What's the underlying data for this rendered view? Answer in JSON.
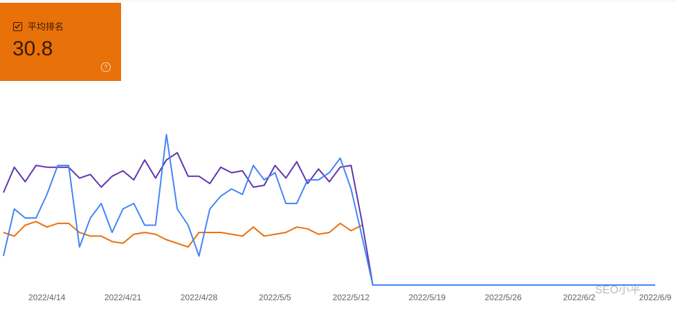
{
  "card": {
    "label": "平均排名",
    "value": "30.8"
  },
  "watermark": "SEO小平",
  "chart_data": {
    "type": "line",
    "x": [
      "2022/4/10",
      "2022/4/11",
      "2022/4/12",
      "2022/4/13",
      "2022/4/14",
      "2022/4/15",
      "2022/4/16",
      "2022/4/17",
      "2022/4/18",
      "2022/4/19",
      "2022/4/20",
      "2022/4/21",
      "2022/4/22",
      "2022/4/23",
      "2022/4/24",
      "2022/4/25",
      "2022/4/26",
      "2022/4/27",
      "2022/4/28",
      "2022/4/29",
      "2022/4/30",
      "2022/5/1",
      "2022/5/2",
      "2022/5/3",
      "2022/5/4",
      "2022/5/5",
      "2022/5/6",
      "2022/5/7",
      "2022/5/8",
      "2022/5/9",
      "2022/5/10",
      "2022/5/11",
      "2022/5/12",
      "2022/5/13",
      "2022/5/14",
      "2022/5/15",
      "2022/5/16",
      "2022/5/17",
      "2022/5/18",
      "2022/5/19",
      "2022/5/20",
      "2022/5/21",
      "2022/5/22",
      "2022/5/23",
      "2022/5/24",
      "2022/5/25",
      "2022/5/26",
      "2022/5/27",
      "2022/5/28",
      "2022/5/29",
      "2022/5/30",
      "2022/5/31",
      "2022/6/1",
      "2022/6/2",
      "2022/6/3",
      "2022/6/4",
      "2022/6/5",
      "2022/6/6",
      "2022/6/7",
      "2022/6/8",
      "2022/6/9"
    ],
    "xticks": [
      "2022/4/14",
      "2022/4/21",
      "2022/4/28",
      "2022/5/5",
      "2022/5/12",
      "2022/5/19",
      "2022/5/26",
      "2022/6/2",
      "2022/6/9"
    ],
    "ylim": [
      0,
      100
    ],
    "series": [
      {
        "color": "#e8710a",
        "values": [
          29,
          27,
          33,
          35,
          32,
          34,
          34,
          29,
          27,
          27,
          24,
          23,
          28,
          29,
          28,
          25,
          23,
          21,
          29,
          29,
          29,
          28,
          27,
          32,
          27,
          28,
          29,
          32,
          31,
          28,
          29,
          34,
          30,
          33,
          null,
          null,
          null,
          null,
          null,
          null,
          null,
          null,
          null,
          null,
          null,
          null,
          null,
          null,
          null,
          null,
          null,
          null,
          null,
          null,
          null,
          null,
          null,
          null,
          null,
          null,
          null
        ]
      },
      {
        "color": "#5e35b1",
        "values": [
          51,
          65,
          57,
          66,
          65,
          65,
          65,
          59,
          61,
          54,
          60,
          63,
          58,
          69,
          59,
          69,
          73,
          60,
          60,
          56,
          65,
          62,
          63,
          54,
          55,
          66,
          59,
          68,
          56,
          64,
          57,
          65,
          66,
          35,
          0,
          0,
          0,
          0,
          0,
          0,
          0,
          0,
          0,
          0,
          0,
          0,
          0,
          0,
          0,
          0,
          0,
          0,
          0,
          0,
          0,
          0,
          0,
          0,
          0,
          0,
          0
        ]
      },
      {
        "color": "#4285f4",
        "values": [
          16,
          42,
          37,
          37,
          50,
          66,
          66,
          21,
          37,
          45,
          29,
          42,
          45,
          33,
          33,
          83,
          42,
          33,
          16,
          42,
          49,
          53,
          50,
          66,
          58,
          62,
          45,
          45,
          58,
          58,
          62,
          70,
          53,
          27,
          0,
          0,
          0,
          0,
          0,
          0,
          0,
          0,
          0,
          0,
          0,
          0,
          0,
          0,
          0,
          0,
          0,
          0,
          0,
          0,
          0,
          0,
          0,
          0,
          0,
          0,
          0
        ]
      }
    ]
  }
}
